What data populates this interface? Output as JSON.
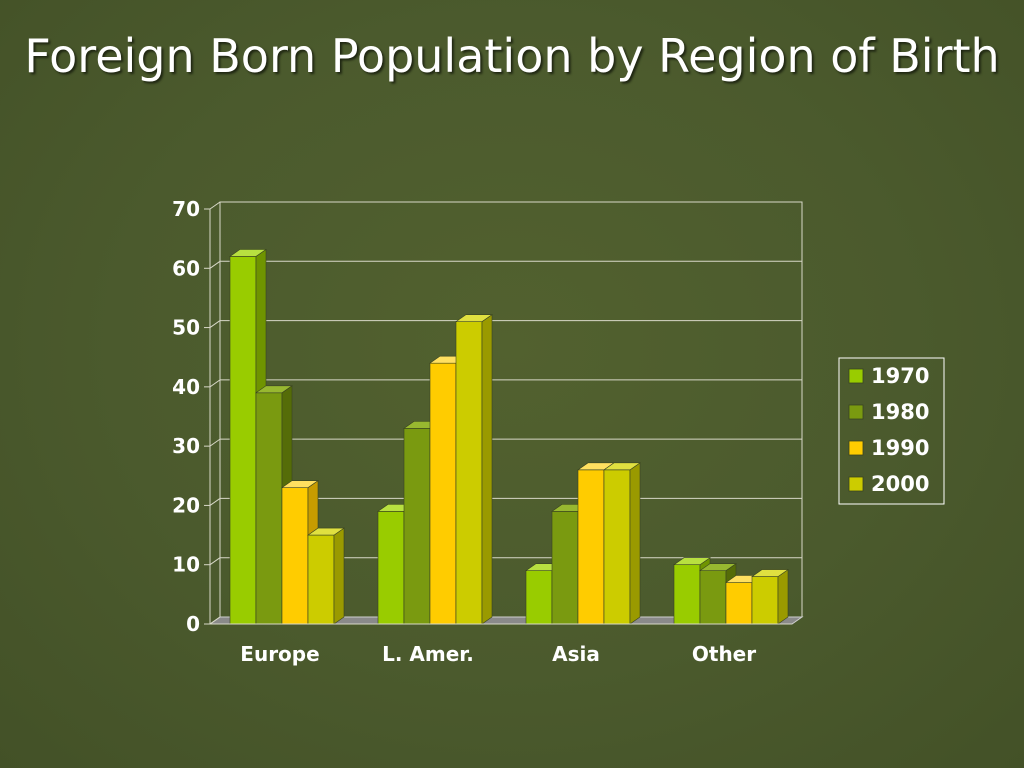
{
  "slide": {
    "title": "Foreign Born Population by Region of Birth"
  },
  "colors": {
    "background": "#4a5a2e",
    "grid": "#d8d8c8",
    "text": "#ffffff"
  },
  "chart_data": {
    "type": "bar",
    "title": "",
    "xlabel": "",
    "ylabel": "",
    "categories": [
      "Europe",
      "L. Amer.",
      "Asia",
      "Other"
    ],
    "series": [
      {
        "name": "1970",
        "values": [
          62,
          19,
          9,
          10
        ],
        "color": "#99cc00",
        "side": "#6f9400",
        "top": "#b8e040"
      },
      {
        "name": "1980",
        "values": [
          39,
          33,
          19,
          9
        ],
        "color": "#7a9a10",
        "side": "#556c08",
        "top": "#98b830"
      },
      {
        "name": "1990",
        "values": [
          23,
          44,
          26,
          7
        ],
        "color": "#ffcc00",
        "side": "#c79c00",
        "top": "#ffe060"
      },
      {
        "name": "2000",
        "values": [
          15,
          51,
          26,
          8
        ],
        "color": "#cccc00",
        "side": "#9a9a00",
        "top": "#e0e040"
      }
    ],
    "ylim": [
      0,
      70
    ],
    "yticks": [
      0,
      10,
      20,
      30,
      40,
      50,
      60,
      70
    ],
    "grid": true,
    "legend_position": "right"
  }
}
